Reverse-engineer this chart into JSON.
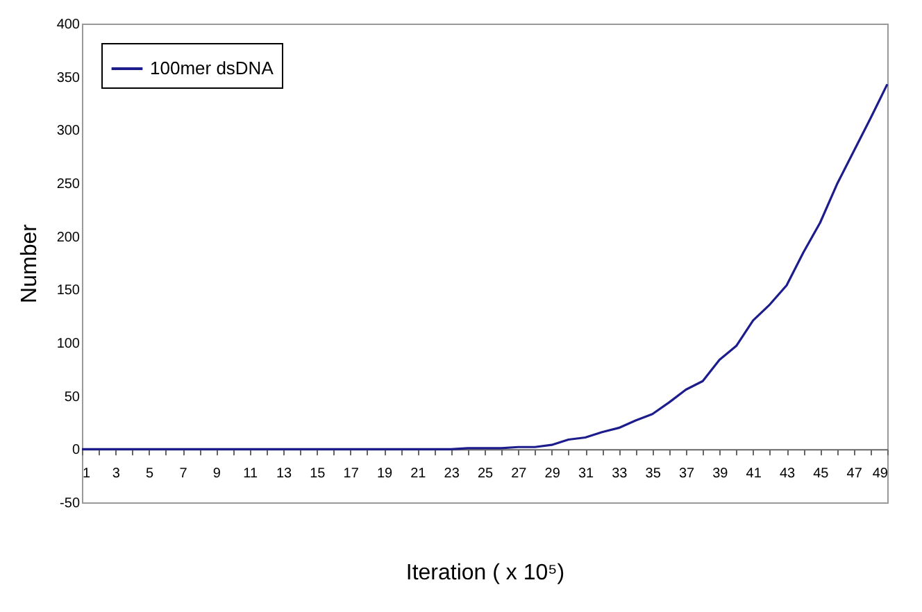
{
  "chart_data": {
    "type": "line",
    "xlabel": "Iteration  ( x 10⁵)",
    "ylabel": "Number",
    "x": [
      1,
      2,
      3,
      4,
      5,
      6,
      7,
      8,
      9,
      10,
      11,
      12,
      13,
      14,
      15,
      16,
      17,
      18,
      19,
      20,
      21,
      22,
      23,
      24,
      25,
      26,
      27,
      28,
      29,
      30,
      31,
      32,
      33,
      34,
      35,
      36,
      37,
      38,
      39,
      40,
      41,
      42,
      43,
      44,
      45,
      46,
      47,
      48,
      49
    ],
    "series": [
      {
        "name": "100mer dsDNA",
        "color": "#1c1c8c",
        "values": [
          0,
          0,
          0,
          0,
          0,
          0,
          0,
          0,
          0,
          0,
          0,
          0,
          0,
          0,
          0,
          0,
          0,
          0,
          0,
          0,
          0,
          0,
          0,
          1,
          1,
          1,
          2,
          2,
          4,
          9,
          11,
          16,
          20,
          27,
          33,
          44,
          56,
          64,
          84,
          97,
          121,
          136,
          154,
          185,
          213,
          249,
          280,
          311,
          343
        ]
      }
    ],
    "xlim": [
      1,
      49
    ],
    "xticks": [
      1,
      {
        "value": 2,
        "label": null
      },
      3,
      {
        "value": 4,
        "label": null
      },
      5,
      {
        "value": 6,
        "label": null
      },
      7,
      {
        "value": 8,
        "label": null
      },
      9,
      {
        "value": 10,
        "label": null
      },
      11,
      {
        "value": 12,
        "label": null
      },
      13,
      {
        "value": 14,
        "label": null
      },
      15,
      {
        "value": 16,
        "label": null
      },
      17,
      {
        "value": 18,
        "label": null
      },
      19,
      {
        "value": 20,
        "label": null
      },
      21,
      {
        "value": 22,
        "label": null
      },
      23,
      {
        "value": 24,
        "label": null
      },
      25,
      {
        "value": 26,
        "label": null
      },
      27,
      {
        "value": 28,
        "label": null
      },
      29,
      {
        "value": 30,
        "label": null
      },
      31,
      {
        "value": 32,
        "label": null
      },
      33,
      {
        "value": 34,
        "label": null
      },
      35,
      {
        "value": 36,
        "label": null
      },
      37,
      {
        "value": 38,
        "label": null
      },
      39,
      {
        "value": 40,
        "label": null
      },
      41,
      {
        "value": 42,
        "label": null
      },
      43,
      {
        "value": 44,
        "label": null
      },
      45,
      {
        "value": 46,
        "label": null
      },
      47,
      {
        "value": 48,
        "label": null
      },
      49
    ],
    "ylim": [
      -50,
      400
    ],
    "yticks": [
      -50,
      0,
      50,
      100,
      150,
      200,
      250,
      300,
      350,
      400
    ],
    "grid": false,
    "legend": "top left",
    "marker": "none",
    "line_style": "solid"
  }
}
